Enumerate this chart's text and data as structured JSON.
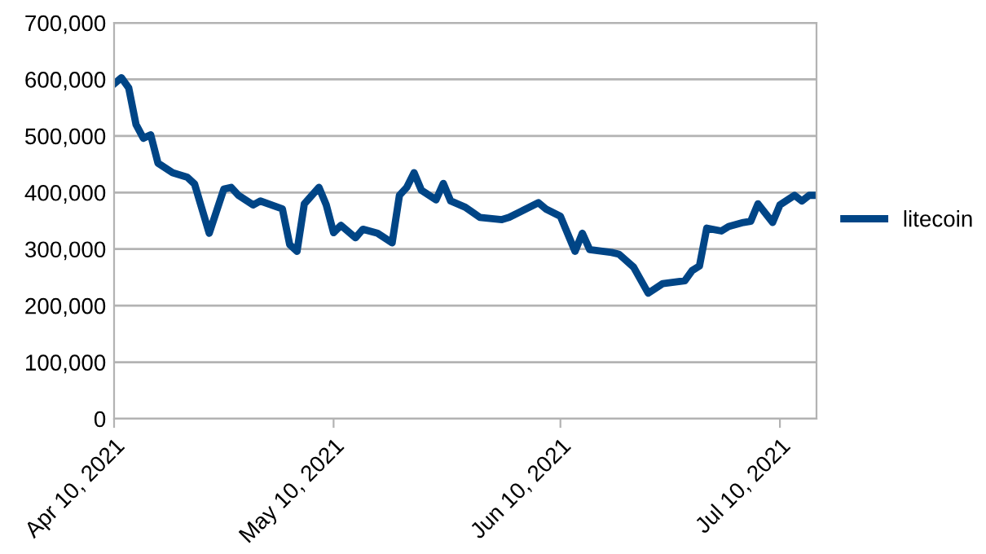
{
  "chart_data": {
    "type": "line",
    "x": [
      "2021-04-10",
      "2021-04-11",
      "2021-04-12",
      "2021-04-13",
      "2021-04-14",
      "2021-04-15",
      "2021-04-16",
      "2021-04-18",
      "2021-04-20",
      "2021-04-21",
      "2021-04-23",
      "2021-04-25",
      "2021-04-26",
      "2021-04-27",
      "2021-04-29",
      "2021-04-30",
      "2021-05-03",
      "2021-05-04",
      "2021-05-05",
      "2021-05-06",
      "2021-05-08",
      "2021-05-09",
      "2021-05-10",
      "2021-05-11",
      "2021-05-13",
      "2021-05-14",
      "2021-05-16",
      "2021-05-18",
      "2021-05-19",
      "2021-05-20",
      "2021-05-21",
      "2021-05-22",
      "2021-05-24",
      "2021-05-25",
      "2021-05-26",
      "2021-05-28",
      "2021-05-30",
      "2021-06-02",
      "2021-06-03",
      "2021-06-05",
      "2021-06-07",
      "2021-06-08",
      "2021-06-10",
      "2021-06-12",
      "2021-06-13",
      "2021-06-14",
      "2021-06-17",
      "2021-06-18",
      "2021-06-20",
      "2021-06-22",
      "2021-06-24",
      "2021-06-27",
      "2021-06-28",
      "2021-06-29",
      "2021-06-30",
      "2021-07-02",
      "2021-07-03",
      "2021-07-05",
      "2021-07-06",
      "2021-07-07",
      "2021-07-09",
      "2021-07-10",
      "2021-07-12",
      "2021-07-13",
      "2021-07-14",
      "2021-07-15"
    ],
    "series": [
      {
        "name": "litecoin",
        "color": "#004586",
        "values": [
          592000,
          603000,
          585000,
          520000,
          496000,
          502000,
          452000,
          435000,
          427000,
          415000,
          328000,
          406000,
          409000,
          395000,
          378000,
          385000,
          371000,
          308000,
          296000,
          380000,
          409000,
          378000,
          329000,
          342000,
          320000,
          335000,
          328000,
          311000,
          395000,
          409000,
          435000,
          404000,
          387000,
          416000,
          385000,
          374000,
          356000,
          352000,
          356000,
          369000,
          382000,
          371000,
          358000,
          296000,
          328000,
          299000,
          294000,
          291000,
          268000,
          222000,
          239000,
          244000,
          262000,
          270000,
          337000,
          332000,
          340000,
          347000,
          349000,
          380000,
          347000,
          378000,
          395000,
          385000,
          395000,
          395000
        ]
      }
    ],
    "xlim": [
      "2021-04-10",
      "2021-07-15"
    ],
    "xticks": [
      {
        "value": "2021-04-10",
        "label": "Apr 10, 2021"
      },
      {
        "value": "2021-05-10",
        "label": "May 10, 2021"
      },
      {
        "value": "2021-06-10",
        "label": "Jun 10, 2021"
      },
      {
        "value": "2021-07-10",
        "label": "Jul 10, 2021"
      }
    ],
    "ylim": [
      0,
      700000
    ],
    "yticks": [
      {
        "value": 0,
        "label": "0"
      },
      {
        "value": 100000,
        "label": "100,000"
      },
      {
        "value": 200000,
        "label": "200,000"
      },
      {
        "value": 300000,
        "label": "300,000"
      },
      {
        "value": 400000,
        "label": "400,000"
      },
      {
        "value": 500000,
        "label": "500,000"
      },
      {
        "value": 600000,
        "label": "600,000"
      },
      {
        "value": 700000,
        "label": "700,000"
      }
    ],
    "grid": "y",
    "legend": "right",
    "marker": "none",
    "line_style": "solid"
  }
}
